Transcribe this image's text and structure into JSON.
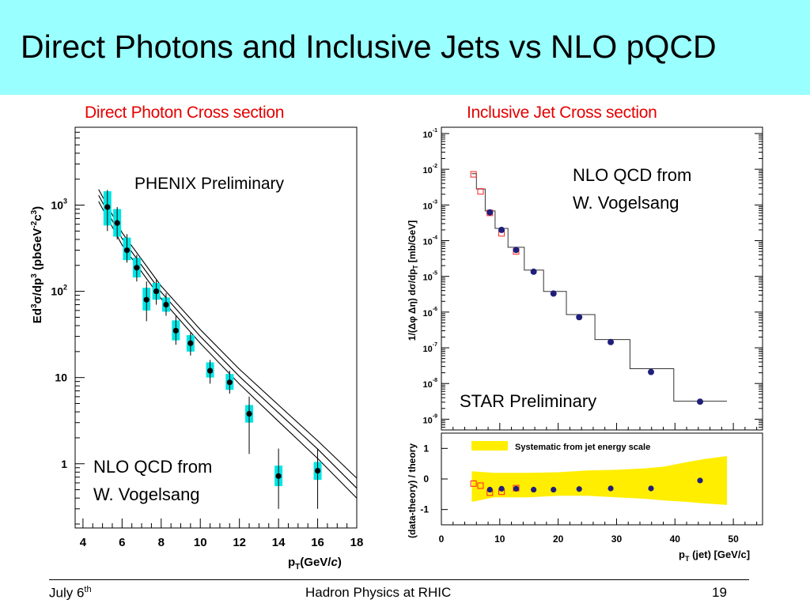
{
  "slide": {
    "title": "Direct Photons and Inclusive Jets vs NLO pQCD",
    "banner_color": "#99ffff",
    "footer": {
      "date": "July 6",
      "date_sup": "th",
      "center": "Hadron Physics at RHIC",
      "page": "19"
    }
  },
  "chart_data": [
    {
      "type": "scatter",
      "title": "Direct Photon Cross section",
      "label": "PHENIX Preliminary",
      "annotation": [
        "NLO QCD from",
        "W. Vogelsang"
      ],
      "ylabel": "Ed³σ/dp³ (pbGeV⁻²c³)",
      "xlabel": "p_T(GeV/c)",
      "xlim": [
        3.6,
        18
      ],
      "ylim": [
        0.18,
        8000
      ],
      "yscale": "log",
      "xticks": [
        4,
        6,
        8,
        10,
        12,
        14,
        16,
        18
      ],
      "yticks": [
        {
          "value": 1,
          "label": "1"
        },
        {
          "value": 10,
          "label": "10"
        },
        {
          "value": 100,
          "label": "10",
          "sup": "2"
        },
        {
          "value": 1000,
          "label": "10",
          "sup": "3"
        }
      ],
      "systematic_color": "#00e5e5",
      "points": [
        {
          "x": 5.25,
          "y": 950,
          "lo": 500,
          "hi": 1500,
          "slo": 580,
          "shi": 1450
        },
        {
          "x": 5.75,
          "y": 620,
          "lo": 400,
          "hi": 950,
          "slo": 430,
          "shi": 900
        },
        {
          "x": 6.25,
          "y": 300,
          "lo": 215,
          "hi": 460,
          "slo": 230,
          "shi": 420
        },
        {
          "x": 6.75,
          "y": 188,
          "lo": 130,
          "hi": 265,
          "slo": 145,
          "shi": 245
        },
        {
          "x": 7.25,
          "y": 80,
          "lo": 45,
          "hi": 130,
          "slo": 60,
          "shi": 110
        },
        {
          "x": 7.75,
          "y": 100,
          "lo": 70,
          "hi": 135,
          "slo": 80,
          "shi": 125
        },
        {
          "x": 8.25,
          "y": 70,
          "lo": 52,
          "hi": 95,
          "slo": 58,
          "shi": 85
        },
        {
          "x": 8.75,
          "y": 35,
          "lo": 24,
          "hi": 52,
          "slo": 27,
          "shi": 46
        },
        {
          "x": 9.5,
          "y": 25,
          "lo": 18,
          "hi": 33,
          "slo": 20,
          "shi": 31
        },
        {
          "x": 10.5,
          "y": 12,
          "lo": 8.5,
          "hi": 16,
          "slo": 10,
          "shi": 15
        },
        {
          "x": 11.5,
          "y": 8.8,
          "lo": 6.5,
          "hi": 12,
          "slo": 7.2,
          "shi": 11
        },
        {
          "x": 12.5,
          "y": 3.8,
          "lo": 1.3,
          "hi": 6,
          "slo": 3,
          "shi": 4.8
        },
        {
          "x": 14.0,
          "y": 0.72,
          "lo": 0.3,
          "hi": 1.5,
          "slo": 0.55,
          "shi": 0.95
        },
        {
          "x": 16.0,
          "y": 0.83,
          "lo": 0.3,
          "hi": 1.5,
          "slo": 0.65,
          "shi": 1.05
        }
      ],
      "curves": [
        {
          "x": [
            4.8,
            6,
            8,
            10,
            12,
            14,
            16,
            18
          ],
          "y": [
            1520,
            480,
            115,
            36,
            12.5,
            4.8,
            1.85,
            0.68
          ]
        },
        {
          "x": [
            4.8,
            6,
            8,
            10,
            12,
            14,
            16,
            18
          ],
          "y": [
            1300,
            410,
            98,
            30,
            10.3,
            3.9,
            1.48,
            0.52
          ]
        },
        {
          "x": [
            4.8,
            6,
            8,
            10,
            12,
            14,
            16,
            18
          ],
          "y": [
            1100,
            345,
            82,
            25,
            8.4,
            3.1,
            1.15,
            0.4
          ]
        }
      ]
    },
    {
      "type": "scatter",
      "title": "Inclusive Jet Cross section",
      "label": "STAR Preliminary",
      "annotation": [
        "NLO QCD from",
        "W. Vogelsang"
      ],
      "ylabel": "1/(Δφ Δη)  dσ/dp_T  [mb/GeV]",
      "xlabel": "p_T   (jet)  [GeV/c]",
      "xlim": [
        0,
        55
      ],
      "ylim": [
        5e-10,
        0.15
      ],
      "yscale": "log",
      "yticks": [
        {
          "value": 0.1,
          "label": "10",
          "sup": "-1"
        },
        {
          "value": 0.01,
          "label": "10",
          "sup": "-2"
        },
        {
          "value": 0.001,
          "label": "10",
          "sup": "-3"
        },
        {
          "value": 0.0001,
          "label": "10",
          "sup": "-4"
        },
        {
          "value": 1e-05,
          "label": "10",
          "sup": "-5"
        },
        {
          "value": 1e-06,
          "label": "10",
          "sup": "-6"
        },
        {
          "value": 1e-07,
          "label": "10",
          "sup": "-7"
        },
        {
          "value": 1e-08,
          "label": "10",
          "sup": "-8"
        },
        {
          "value": 1e-09,
          "label": "10",
          "sup": "-9"
        }
      ],
      "star_points": [
        {
          "x": 8.3,
          "y": 0.00062
        },
        {
          "x": 10.3,
          "y": 0.0002
        },
        {
          "x": 12.8,
          "y": 5.5e-05
        },
        {
          "x": 15.8,
          "y": 1.35e-05
        },
        {
          "x": 19.2,
          "y": 3.3e-06
        },
        {
          "x": 23.6,
          "y": 7.2e-07
        },
        {
          "x": 29.0,
          "y": 1.45e-07
        },
        {
          "x": 35.9,
          "y": 2.1e-08
        },
        {
          "x": 44.3,
          "y": 3.1e-09
        }
      ],
      "other_points": [
        {
          "x": 5.5,
          "y": 0.0072
        },
        {
          "x": 6.7,
          "y": 0.0024
        },
        {
          "x": 8.3,
          "y": 0.0006
        },
        {
          "x": 10.3,
          "y": 0.00016
        },
        {
          "x": 12.8,
          "y": 5e-05
        }
      ],
      "theory_steps": [
        {
          "x0": 5.2,
          "x1": 6.0,
          "y": 0.0075
        },
        {
          "x0": 6.0,
          "x1": 7.5,
          "y": 0.0028
        },
        {
          "x0": 7.5,
          "x1": 9.2,
          "y": 0.00068
        },
        {
          "x0": 9.2,
          "x1": 11.4,
          "y": 0.00022
        },
        {
          "x0": 11.4,
          "x1": 14.2,
          "y": 6.5e-05
        },
        {
          "x0": 14.2,
          "x1": 17.5,
          "y": 1.5e-05
        },
        {
          "x0": 17.5,
          "x1": 21.4,
          "y": 3.8e-06
        },
        {
          "x0": 21.4,
          "x1": 26.3,
          "y": 8.5e-07
        },
        {
          "x0": 26.3,
          "x1": 32.3,
          "y": 1.7e-07
        },
        {
          "x0": 32.3,
          "x1": 39.8,
          "y": 2.6e-08
        },
        {
          "x0": 39.8,
          "x1": 48.9,
          "y": 3.2e-09
        }
      ]
    },
    {
      "type": "scatter",
      "legend": "Systematic from jet energy scale",
      "ylabel": "(data-theory) /   theory",
      "xlabel": "p_T   (jet)  [GeV/c]",
      "xlim": [
        0,
        55
      ],
      "ylim": [
        -1.5,
        1.5
      ],
      "xticks": [
        0,
        10,
        20,
        30,
        40,
        50
      ],
      "yticks": [
        1,
        0,
        -1
      ],
      "band_color": "#ffee00",
      "band": {
        "x": [
          5.2,
          9,
          15,
          20,
          25,
          30,
          35,
          38,
          42,
          45,
          48.9
        ],
        "upper": [
          0.25,
          0.2,
          0.2,
          0.22,
          0.28,
          0.3,
          0.35,
          0.4,
          0.55,
          0.65,
          0.75
        ],
        "lower": [
          -0.75,
          -0.6,
          -0.6,
          -0.55,
          -0.55,
          -0.6,
          -0.65,
          -0.7,
          -0.75,
          -0.8,
          -0.85
        ]
      },
      "star_points": [
        {
          "x": 8.3,
          "y": -0.35
        },
        {
          "x": 10.3,
          "y": -0.32
        },
        {
          "x": 12.8,
          "y": -0.32
        },
        {
          "x": 15.8,
          "y": -0.35
        },
        {
          "x": 19.2,
          "y": -0.35
        },
        {
          "x": 23.6,
          "y": -0.33
        },
        {
          "x": 29.0,
          "y": -0.31
        },
        {
          "x": 35.9,
          "y": -0.31
        },
        {
          "x": 44.3,
          "y": -0.05
        }
      ],
      "other_points": [
        {
          "x": 5.5,
          "y": -0.15
        },
        {
          "x": 6.7,
          "y": -0.22
        },
        {
          "x": 8.3,
          "y": -0.45
        },
        {
          "x": 10.3,
          "y": -0.42
        },
        {
          "x": 12.8,
          "y": -0.3
        }
      ]
    }
  ]
}
